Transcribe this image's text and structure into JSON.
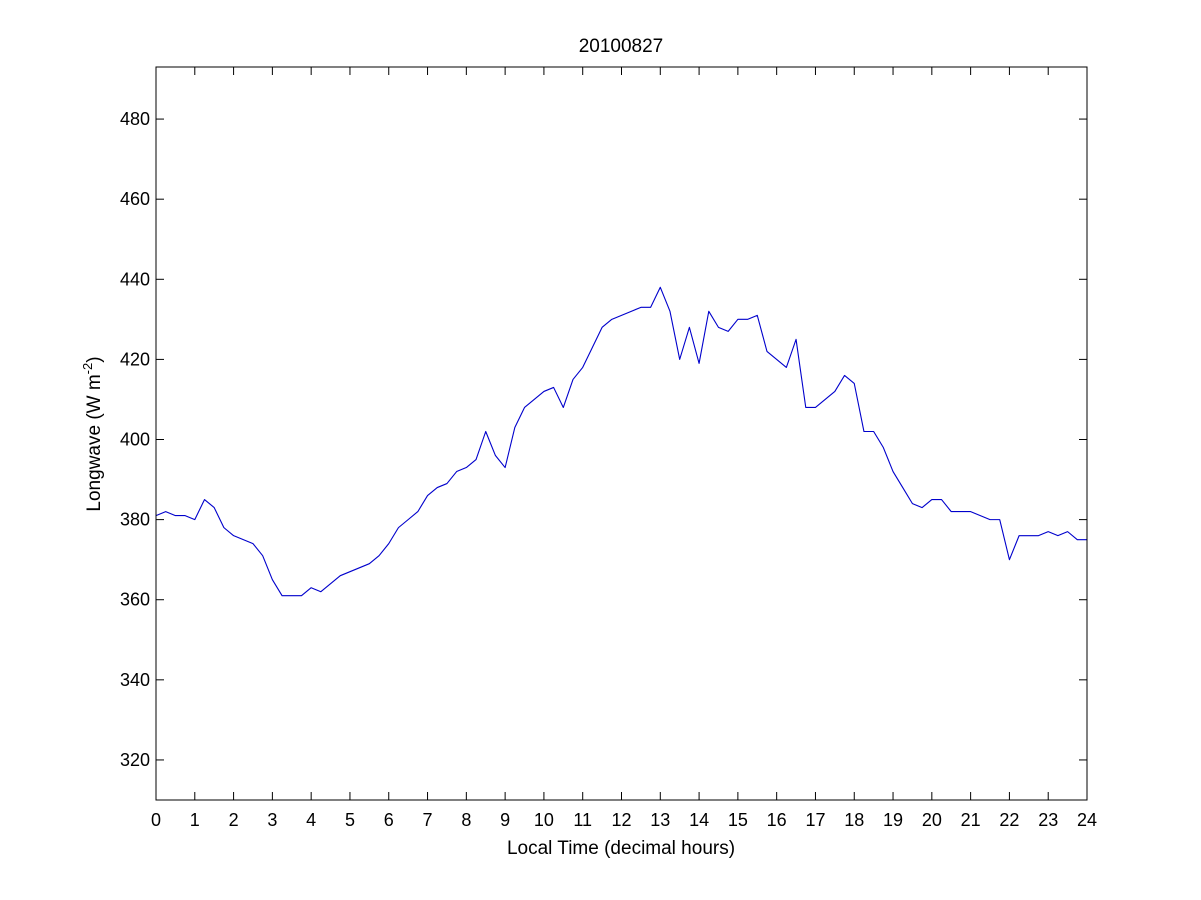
{
  "chart_data": {
    "type": "line",
    "title": "20100827",
    "xlabel": "Local Time (decimal hours)",
    "ylabel": {
      "main": "Longwave (W m",
      "superscript": "-2",
      "close": ")"
    },
    "xlim": [
      0,
      24
    ],
    "ylim": [
      310,
      493
    ],
    "xticks": [
      0,
      1,
      2,
      3,
      4,
      5,
      6,
      7,
      8,
      9,
      10,
      11,
      12,
      13,
      14,
      15,
      16,
      17,
      18,
      19,
      20,
      21,
      22,
      23,
      24
    ],
    "yticks": [
      320,
      340,
      360,
      380,
      400,
      420,
      440,
      460,
      480
    ],
    "grid": false,
    "line_color": "#0000cc",
    "series": [
      {
        "x": [
          0,
          0.25,
          0.5,
          0.75,
          1.0,
          1.25,
          1.5,
          1.75,
          2.0,
          2.25,
          2.5,
          2.75,
          3.0,
          3.25,
          3.5,
          3.75,
          4.0,
          4.25,
          4.5,
          4.75,
          5.0,
          5.25,
          5.5,
          5.75,
          6.0,
          6.25,
          6.5,
          6.75,
          7.0,
          7.25,
          7.5,
          7.75,
          8.0,
          8.25,
          8.5,
          8.75,
          9.0,
          9.25,
          9.5,
          9.75,
          10.0,
          10.25,
          10.5,
          10.75,
          11.0,
          11.25,
          11.5,
          11.75,
          12.0,
          12.25,
          12.5,
          12.75,
          13.0,
          13.25,
          13.5,
          13.75,
          14.0,
          14.25,
          14.5,
          14.75,
          15.0,
          15.25,
          15.5,
          15.75,
          16.0,
          16.25,
          16.5,
          16.75,
          17.0,
          17.25,
          17.5,
          17.75,
          18.0,
          18.25,
          18.5,
          18.75,
          19.0,
          19.25,
          19.5,
          19.75,
          20.0,
          20.25,
          20.5,
          20.75,
          21.0,
          21.25,
          21.5,
          21.75,
          22.0,
          22.25,
          22.5,
          22.75,
          23.0,
          23.25,
          23.5,
          23.75,
          24.0
        ],
        "y": [
          381,
          382,
          381,
          381,
          380,
          385,
          383,
          378,
          376,
          375,
          374,
          371,
          365,
          361,
          361,
          361,
          363,
          362,
          364,
          366,
          367,
          368,
          369,
          371,
          374,
          378,
          380,
          382,
          386,
          388,
          389,
          392,
          393,
          395,
          402,
          396,
          393,
          403,
          408,
          410,
          412,
          413,
          408,
          415,
          418,
          423,
          428,
          430,
          431,
          432,
          433,
          433,
          438,
          432,
          420,
          428,
          419,
          432,
          428,
          427,
          430,
          430,
          431,
          422,
          420,
          418,
          425,
          408,
          408,
          410,
          412,
          416,
          414,
          402,
          402,
          398,
          392,
          388,
          384,
          383,
          385,
          385,
          382,
          382,
          382,
          381,
          380,
          380,
          370,
          376,
          376,
          376,
          377,
          376,
          377,
          375,
          375
        ]
      }
    ]
  }
}
